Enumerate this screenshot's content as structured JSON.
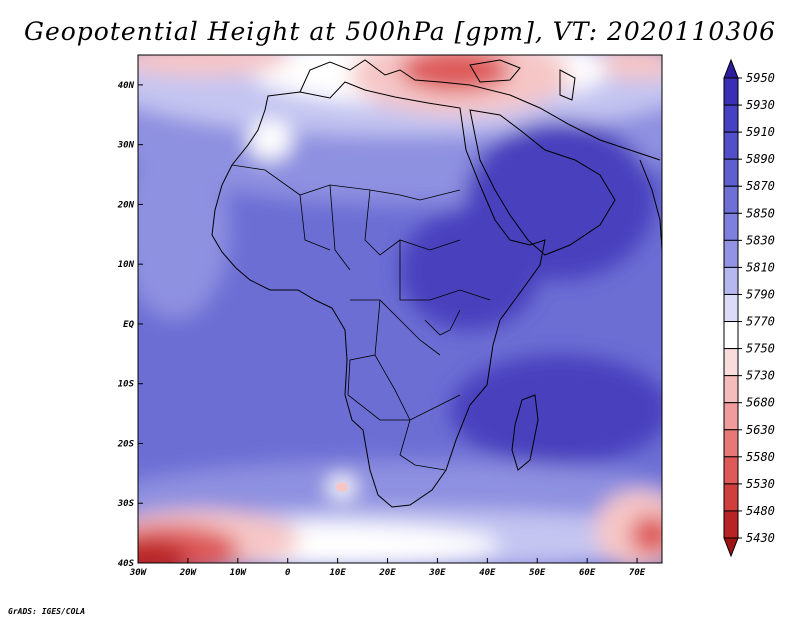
{
  "title": "Geopotential Height at 500hPa [gpm], VT: 2020110306",
  "credit": "GrADS: IGES/COLA",
  "map": {
    "lon_range": [
      -30,
      75
    ],
    "lat_range": [
      -40,
      45
    ],
    "x_ticks": [
      "30W",
      "20W",
      "10W",
      "0",
      "10E",
      "20E",
      "30E",
      "40E",
      "50E",
      "60E",
      "70E"
    ],
    "y_ticks": [
      "40N",
      "30N",
      "20N",
      "10N",
      "EQ",
      "10S",
      "20S",
      "30S",
      "40S"
    ]
  },
  "colorbar": {
    "labels": [
      "5950",
      "5930",
      "5910",
      "5890",
      "5870",
      "5850",
      "5830",
      "5810",
      "5790",
      "5770",
      "5750",
      "5730",
      "5680",
      "5630",
      "5580",
      "5530",
      "5480",
      "5430"
    ],
    "colors": [
      "#2b1d9c",
      "#3a2fb5",
      "#4640c2",
      "#5250c8",
      "#5f60cf",
      "#6e70d6",
      "#7d80dc",
      "#9294e3",
      "#b5b7ee",
      "#dcdcf8",
      "#ffffff",
      "#f9dcdc",
      "#f5bcbc",
      "#f09c9c",
      "#e87878",
      "#de5a5a",
      "#d03e3e",
      "#b82424",
      "#9e1414"
    ]
  },
  "field_colors": {
    "deep": "#4a3fbe",
    "mid": "#6c6ed4",
    "light": "#8e90e0",
    "pale": "#c4c5f1",
    "white": "#ffffff",
    "pink": "#f6c6c6",
    "red": "#de5a5a",
    "dark_red": "#b82424"
  }
}
